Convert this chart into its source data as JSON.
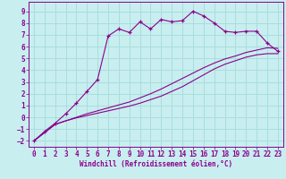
{
  "xlabel": "Windchill (Refroidissement éolien,°C)",
  "bg_color": "#c8eef0",
  "line_color": "#8b008b",
  "grid_color": "#aadddd",
  "xlim": [
    -0.5,
    23.5
  ],
  "ylim": [
    -2.5,
    9.8
  ],
  "xticks": [
    0,
    1,
    2,
    3,
    4,
    5,
    6,
    7,
    8,
    9,
    10,
    11,
    12,
    13,
    14,
    15,
    16,
    17,
    18,
    19,
    20,
    21,
    22,
    23
  ],
  "yticks": [
    -2,
    -1,
    0,
    1,
    2,
    3,
    4,
    5,
    6,
    7,
    8,
    9
  ],
  "line1_x": [
    0,
    1,
    2,
    3,
    4,
    5,
    6,
    7,
    8,
    9,
    10,
    11,
    12,
    13,
    14,
    15,
    16,
    17,
    18,
    19,
    20,
    21,
    22,
    23
  ],
  "line1_y": [
    -2.0,
    -1.3,
    -0.6,
    -0.3,
    -0.05,
    0.15,
    0.35,
    0.55,
    0.75,
    0.95,
    1.2,
    1.5,
    1.8,
    2.2,
    2.6,
    3.1,
    3.6,
    4.1,
    4.5,
    4.8,
    5.1,
    5.3,
    5.4,
    5.4
  ],
  "line2_x": [
    0,
    2,
    3,
    4,
    5,
    6,
    7,
    8,
    9,
    10,
    11,
    12,
    13,
    14,
    15,
    16,
    17,
    18,
    19,
    20,
    21,
    22,
    23
  ],
  "line2_y": [
    -2.0,
    -0.6,
    -0.3,
    0.0,
    0.3,
    0.55,
    0.8,
    1.05,
    1.3,
    1.65,
    2.0,
    2.4,
    2.85,
    3.3,
    3.75,
    4.2,
    4.6,
    4.95,
    5.2,
    5.5,
    5.7,
    5.9,
    5.85
  ],
  "line3_x": [
    0,
    1,
    2,
    3,
    4,
    5,
    6,
    7,
    8,
    9,
    10,
    11,
    12,
    13,
    14,
    15,
    16,
    17,
    18,
    19,
    20,
    21,
    22,
    23
  ],
  "line3_y": [
    -2.0,
    -1.2,
    -0.5,
    0.3,
    1.2,
    2.2,
    3.2,
    6.9,
    7.5,
    7.2,
    8.1,
    7.5,
    8.3,
    8.1,
    8.2,
    9.0,
    8.6,
    8.0,
    7.3,
    7.2,
    7.3,
    7.3,
    6.3,
    5.6
  ]
}
